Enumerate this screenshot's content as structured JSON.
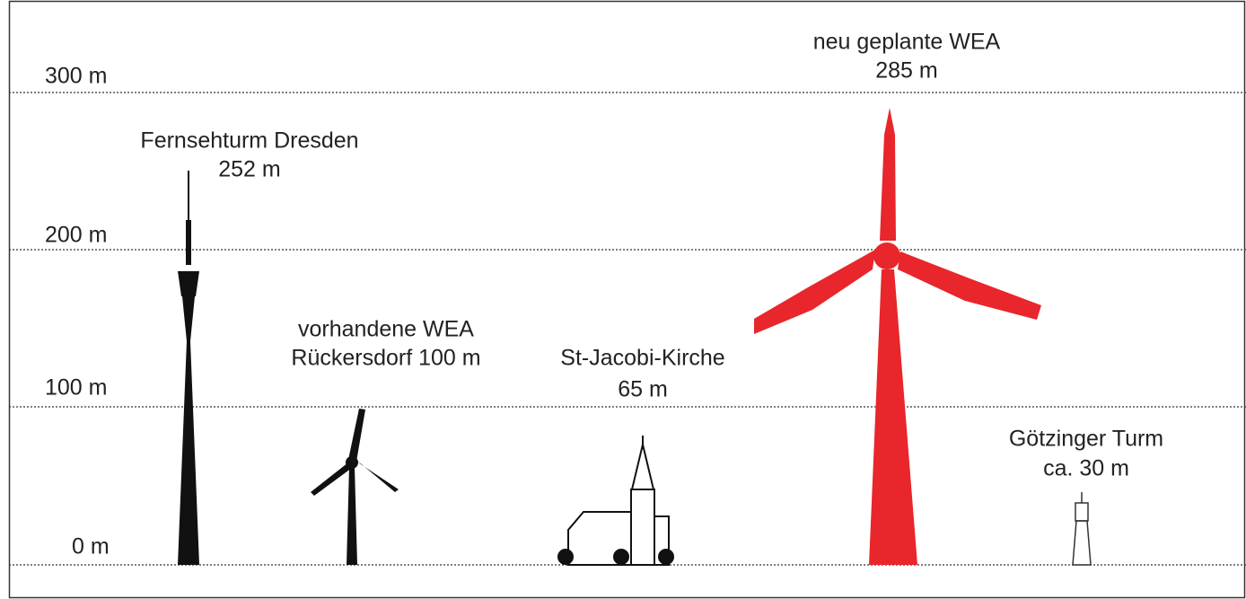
{
  "scale": [
    "300 m",
    "200 m",
    "100 m",
    "0 m"
  ],
  "objects": [
    {
      "label": [
        "Fernsehturm Dresden",
        "252 m"
      ]
    },
    {
      "label": [
        "vorhandene WEA",
        "Rückersdorf 100 m"
      ]
    },
    {
      "label": [
        "St-Jacobi-Kirche",
        "65 m"
      ]
    },
    {
      "label": [
        "neu geplante WEA",
        "285 m"
      ]
    },
    {
      "label": [
        "Götzinger Turm",
        "ca. 30 m"
      ]
    }
  ]
}
